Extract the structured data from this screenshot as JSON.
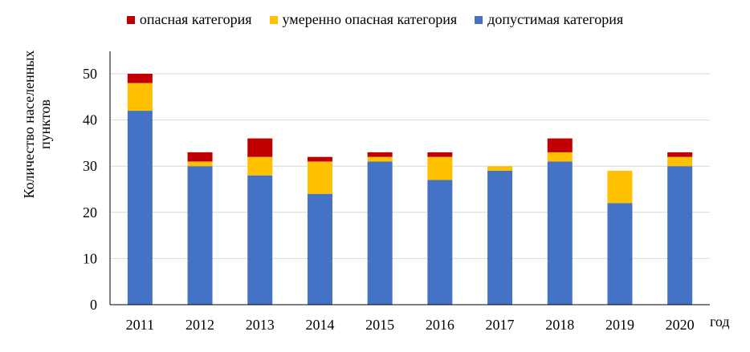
{
  "chart_data": {
    "type": "bar",
    "stacked": true,
    "categories": [
      "2011",
      "2012",
      "2013",
      "2014",
      "2015",
      "2016",
      "2017",
      "2018",
      "2019",
      "2020"
    ],
    "series": [
      {
        "name": "допустимая категория",
        "color": "#4472C4",
        "values": [
          42,
          30,
          28,
          24,
          31,
          27,
          29,
          31,
          22,
          30
        ]
      },
      {
        "name": "умеренно опасная категория",
        "color": "#FFC000",
        "values": [
          6,
          1,
          4,
          7,
          1,
          5,
          1,
          2,
          7,
          2
        ]
      },
      {
        "name": "опасная категория",
        "color": "#C00000",
        "values": [
          2,
          2,
          4,
          1,
          1,
          1,
          0,
          3,
          0,
          1
        ]
      }
    ],
    "legend_order": [
      "опасная категория",
      "умеренно опасная категория",
      "допустимая категория"
    ],
    "xlabel": "год",
    "ylabel": "Количество населенных пунктов",
    "ylim": [
      0,
      50
    ],
    "yticks": [
      0,
      10,
      20,
      30,
      40,
      50
    ],
    "grid": true,
    "legend_position": "top"
  }
}
